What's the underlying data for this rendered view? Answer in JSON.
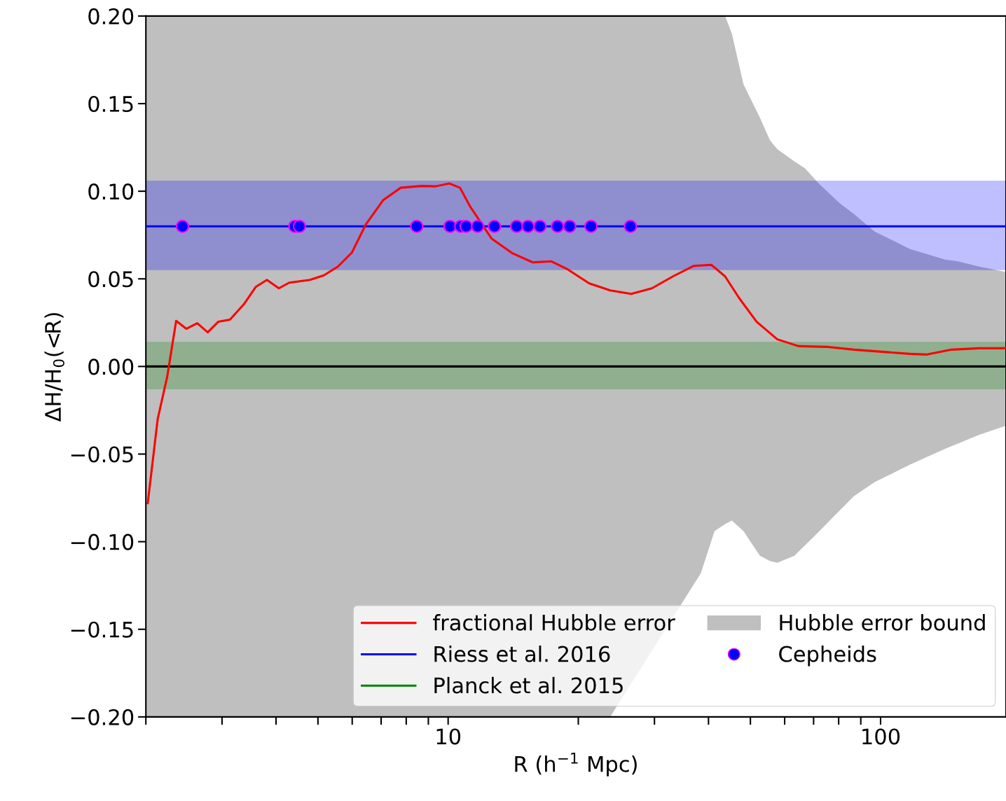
{
  "chart_data": {
    "type": "line",
    "xlabel": "R (h$^{−1}$ Mpc)",
    "ylabel": "ΔH/H$_{0}$(<R)",
    "log": "x",
    "xlim": [
      2,
      195
    ],
    "ylim": [
      -0.2,
      0.2
    ],
    "xticks": [
      {
        "value": 2,
        "label": null
      },
      {
        "value": 3,
        "label": null
      },
      {
        "value": 4,
        "label": null
      },
      {
        "value": 5,
        "label": null
      },
      {
        "value": 6,
        "label": null
      },
      {
        "value": 7,
        "label": null
      },
      {
        "value": 8,
        "label": null
      },
      {
        "value": 9,
        "label": null
      },
      10,
      {
        "value": 20,
        "label": null
      },
      {
        "value": 30,
        "label": null
      },
      {
        "value": 40,
        "label": null
      },
      {
        "value": 50,
        "label": null
      },
      {
        "value": 60,
        "label": null
      },
      {
        "value": 70,
        "label": null
      },
      {
        "value": 80,
        "label": null
      },
      {
        "value": 90,
        "label": null
      },
      100
    ],
    "yticks": [
      {
        "value": -0.2,
        "label": "−0.20"
      },
      {
        "value": -0.15,
        "label": "−0.15"
      },
      {
        "value": -0.1,
        "label": "−0.10"
      },
      {
        "value": -0.05,
        "label": "−0.05"
      },
      {
        "value": 0,
        "label": "0.00"
      },
      {
        "value": 0.05,
        "label": "0.05"
      },
      {
        "value": 0.1,
        "label": "0.10"
      },
      {
        "value": 0.15,
        "label": "0.15"
      },
      {
        "value": 0.2,
        "label": "0.20"
      }
    ],
    "grid": false,
    "legend": "bottom right",
    "series": [
      {
        "type": "area",
        "color": "#bfbfbf",
        "x": [
          2,
          23.7,
          38.4,
          41.3,
          43.7,
          45.3,
          48.2,
          52.6,
          55.5,
          57.7,
          63.2,
          66.9,
          72.2,
          80.6,
          86.8,
          96.9,
          117,
          141,
          151,
          169,
          194
        ],
        "values": [
          -0.2,
          -0.2,
          -0.118,
          -0.094,
          -0.09,
          -0.088,
          -0.094,
          -0.108,
          -0.111,
          -0.112,
          -0.108,
          -0.102,
          -0.094,
          -0.082,
          -0.074,
          -0.066,
          -0.056,
          -0.047,
          -0.044,
          -0.039,
          -0.034
        ]
      },
      {
        "type": "area",
        "name": "Hubble error bound",
        "color": "#bfbfbf",
        "x": [
          2,
          23.7,
          31.8,
          38.4,
          41.3,
          43.7,
          45.3,
          48.2,
          52.6,
          55.5,
          57.7,
          63.2,
          66.9,
          72.2,
          80.6,
          86.8,
          96.9,
          117,
          141,
          151,
          169,
          194
        ],
        "values": [
          0.2,
          0.2,
          0.2,
          0.2,
          0.2,
          0.2,
          0.19,
          0.161,
          0.142,
          0.129,
          0.124,
          0.117,
          0.113,
          0.104,
          0.093,
          0.087,
          0.077,
          0.067,
          0.061,
          0.06,
          0.057,
          0.054
        ]
      },
      {
        "type": "line",
        "name": "fractional Hubble error",
        "color": "#ff0000",
        "x": [
          2.02,
          2.13,
          2.24,
          2.35,
          2.48,
          2.63,
          2.78,
          2.94,
          3.13,
          3.37,
          3.59,
          3.81,
          4.06,
          4.29,
          4.79,
          5.16,
          5.56,
          5.99,
          6.45,
          7.08,
          7.77,
          8.68,
          9.35,
          10.07,
          10.65,
          11.26,
          12.6,
          14.1,
          15.7,
          17.3,
          18.9,
          21.2,
          23.7,
          26.5,
          29.6,
          33.1,
          37.0,
          40.6,
          43.7,
          47.1,
          51.7,
          57.7,
          64.6,
          74.9,
          86.8,
          100.7,
          116.9,
          128,
          146,
          169,
          194
        ],
        "values": [
          -0.078,
          -0.03,
          -0.006,
          0.026,
          0.0215,
          0.0247,
          0.0195,
          0.0255,
          0.0267,
          0.0355,
          0.0454,
          0.0494,
          0.0446,
          0.0478,
          0.0494,
          0.052,
          0.057,
          0.065,
          0.081,
          0.095,
          0.102,
          0.103,
          0.1028,
          0.1044,
          0.102,
          0.091,
          0.073,
          0.0645,
          0.0594,
          0.06,
          0.0554,
          0.0474,
          0.0434,
          0.0414,
          0.0446,
          0.0514,
          0.0574,
          0.058,
          0.0514,
          0.039,
          0.0255,
          0.0155,
          0.0116,
          0.0112,
          0.0096,
          0.0084,
          0.0072,
          0.0068,
          0.0096,
          0.0104,
          0.0104
        ]
      },
      {
        "type": "scatter",
        "name": "Cepheids",
        "color": "#0000ff",
        "marker": "circle",
        "x": [
          2.43,
          4.42,
          4.53,
          8.46,
          10.1,
          10.7,
          11.0,
          11.7,
          12.8,
          14.4,
          15.3,
          16.3,
          17.9,
          19.1,
          21.4,
          26.4
        ],
        "values": [
          0.08,
          0.08,
          0.08,
          0.08,
          0.08,
          0.08,
          0.08,
          0.08,
          0.08,
          0.08,
          0.08,
          0.08,
          0.08,
          0.08,
          0.08,
          0.08
        ]
      }
    ],
    "ref_lines": [
      {
        "axis": "y",
        "value": 0.08,
        "label": "Riess et al. 2016",
        "color": "#0000ff"
      },
      {
        "axis": "y",
        "value": 0,
        "color": "#000000"
      }
    ],
    "bands": [
      {
        "axis": "y",
        "from": 0.055,
        "to": 0.106,
        "color": "#0000ff"
      },
      {
        "axis": "y",
        "from": -0.013,
        "to": 0.014,
        "color": "#008000",
        "label": "Planck et al. 2015"
      }
    ]
  }
}
